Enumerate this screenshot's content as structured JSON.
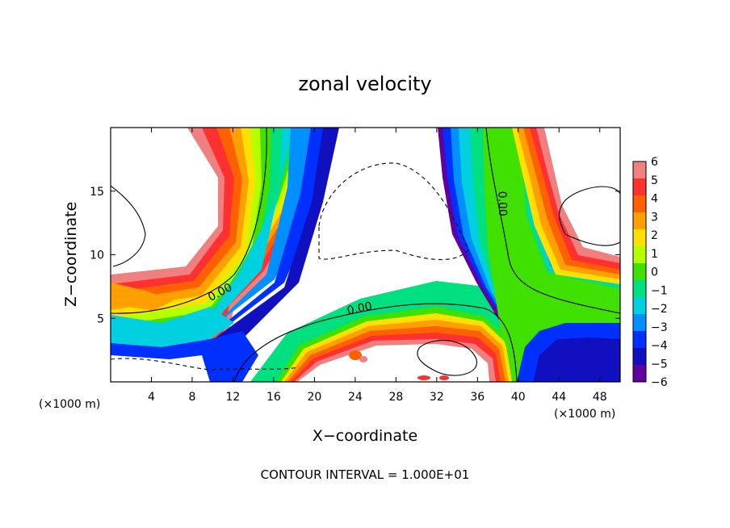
{
  "chart_data": {
    "type": "heatmap",
    "title": "zonal velocity",
    "xlabel": "X−coordinate",
    "ylabel": "Z−coordinate",
    "x_unit_left": "(×1000 m)",
    "x_unit_right": "(×1000 m)",
    "xlim": [
      0,
      50
    ],
    "ylim": [
      0,
      20
    ],
    "x_ticks": [
      4,
      8,
      12,
      16,
      20,
      24,
      28,
      32,
      36,
      40,
      44,
      48
    ],
    "y_ticks": [
      5,
      10,
      15
    ],
    "colorbar": {
      "range": [
        -6,
        6
      ],
      "labels": [
        "6",
        "5",
        "4",
        "3",
        "2",
        "1",
        "0",
        "−1",
        "−2",
        "−3",
        "−4",
        "−5",
        "−6"
      ],
      "colors": [
        "#f08080",
        "#ff3030",
        "#ff6000",
        "#ffa000",
        "#ffe000",
        "#b4ff00",
        "#40e000",
        "#00e080",
        "#00d0e0",
        "#0090ff",
        "#0030ff",
        "#1010c0",
        "#6000a0"
      ]
    },
    "contour_labels": [
      {
        "text": "0.00",
        "x": 10.9,
        "y": 6.8,
        "rotate": -28
      },
      {
        "text": "0.00",
        "x": 24.5,
        "y": 5.5,
        "rotate": -12
      },
      {
        "text": "0.00",
        "x": 38.1,
        "y": 14.0,
        "rotate": 88
      }
    ],
    "footnote": "CONTOUR INTERVAL = 1.000E+01"
  }
}
